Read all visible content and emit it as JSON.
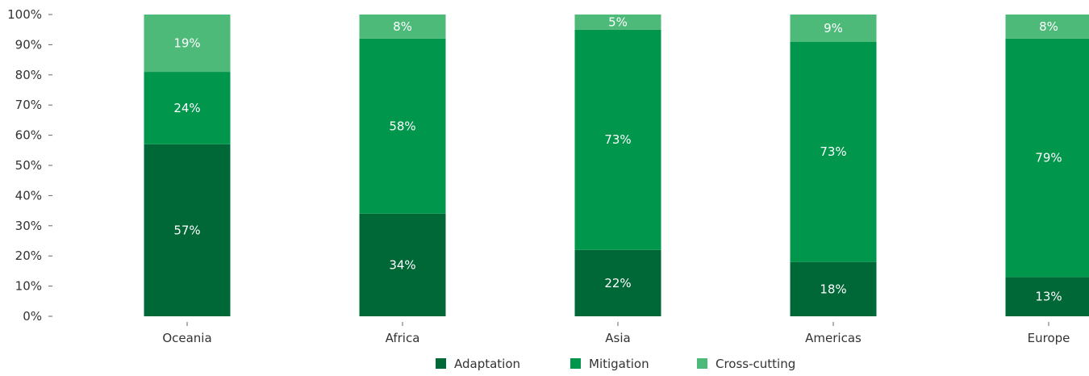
{
  "chart_data": {
    "type": "bar",
    "stacked": true,
    "normalized_percent": true,
    "categories": [
      "Oceania",
      "Africa",
      "Asia",
      "Americas",
      "Europe"
    ],
    "series": [
      {
        "name": "Adaptation",
        "values": [
          57,
          34,
          22,
          18,
          13
        ],
        "labels": [
          "57%",
          "34%",
          "22%",
          "18%",
          "13%"
        ],
        "color": "#006837"
      },
      {
        "name": "Mitigation",
        "values": [
          24,
          58,
          73,
          73,
          79
        ],
        "labels": [
          "24%",
          "58%",
          "73%",
          "73%",
          "79%"
        ],
        "color": "#00964b"
      },
      {
        "name": "Cross-cutting",
        "values": [
          19,
          8,
          5,
          9,
          8
        ],
        "labels": [
          "19%",
          "8%",
          "5%",
          "9%",
          "8%"
        ],
        "color": "#4dba7a"
      }
    ],
    "y_ticks": [
      "0%",
      "10%",
      "20%",
      "30%",
      "40%",
      "50%",
      "60%",
      "70%",
      "80%",
      "90%",
      "100%"
    ],
    "ylim": [
      0,
      100
    ],
    "grid": false,
    "legend_position": "bottom",
    "xlabel": "",
    "ylabel": "",
    "title": ""
  }
}
